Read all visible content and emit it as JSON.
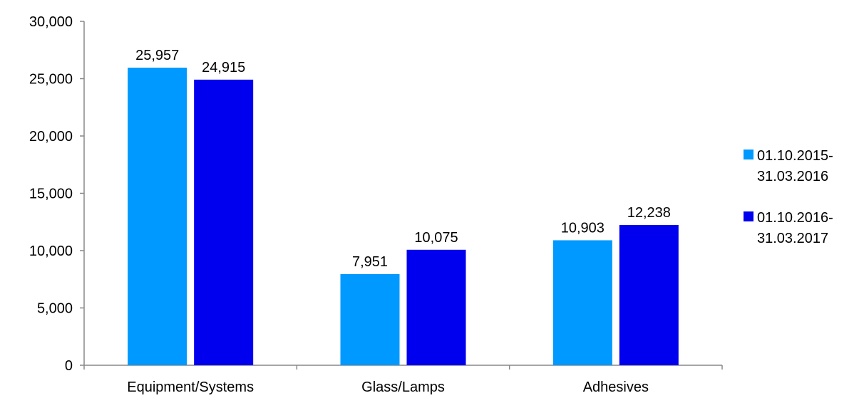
{
  "chart_data": {
    "type": "bar",
    "categories": [
      "Equipment/Systems",
      "Glass/Lamps",
      "Adhesives"
    ],
    "series": [
      {
        "name_lines": [
          "01.10.2015-",
          "31.03.2016"
        ],
        "color": "#0099ff",
        "values": [
          25957,
          7951,
          10903
        ],
        "labels": [
          "25,957",
          "7,951",
          "10,903"
        ]
      },
      {
        "name_lines": [
          "01.10.2016-",
          "31.03.2017"
        ],
        "color": "#0000ee",
        "values": [
          24915,
          10075,
          12238
        ],
        "labels": [
          "24,915",
          "10,075",
          "12,238"
        ]
      }
    ],
    "ylim": [
      0,
      30000
    ],
    "yticks": [
      0,
      5000,
      10000,
      15000,
      20000,
      25000,
      30000
    ],
    "ytick_labels": [
      "0",
      "5,000",
      "10,000",
      "15,000",
      "20,000",
      "25,000",
      "30,000"
    ],
    "grid": false,
    "legend_position": "right"
  }
}
